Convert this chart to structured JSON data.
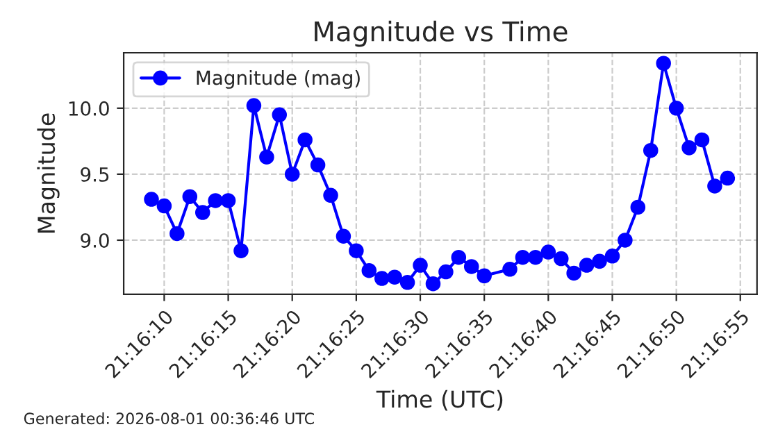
{
  "chart_data": {
    "type": "line",
    "title": "Magnitude vs Time",
    "xlabel": "Time (UTC)",
    "ylabel": "Magnitude",
    "annotations": [
      "Generated: 2026-08-01 00:36:46 UTC"
    ],
    "x": [
      21.269167,
      21.269444,
      21.269722,
      21.27,
      21.270278,
      21.270556,
      21.270833,
      21.271111,
      21.271389,
      21.271667,
      21.271944,
      21.272222,
      21.2725,
      21.272778,
      21.273056,
      21.273333,
      21.273611,
      21.273889,
      21.274167,
      21.274444,
      21.274722,
      21.275,
      21.275278,
      21.275556,
      21.275833,
      21.276111,
      21.276389,
      21.276944,
      21.277222,
      21.2775,
      21.277778,
      21.278056,
      21.278333,
      21.278611,
      21.278889,
      21.279167,
      21.279444,
      21.279722,
      21.28,
      21.280278,
      21.280556,
      21.280833,
      21.281111,
      21.281389,
      21.281667
    ],
    "series": [
      {
        "name": "Magnitude (mag)",
        "color": "#0000ff",
        "values": [
          9.31,
          9.26,
          9.05,
          9.33,
          9.21,
          9.3,
          9.3,
          8.92,
          10.02,
          9.63,
          9.95,
          9.5,
          9.76,
          9.57,
          9.34,
          9.03,
          8.92,
          8.77,
          8.71,
          8.72,
          8.68,
          8.81,
          8.67,
          8.76,
          8.87,
          8.8,
          8.73,
          8.78,
          8.87,
          8.87,
          8.91,
          8.86,
          8.75,
          8.81,
          8.84,
          8.88,
          9.0,
          9.25,
          9.68,
          10.34,
          10.0,
          9.7,
          9.76,
          9.41,
          9.47
        ]
      }
    ],
    "xlim": [
      21.268565,
      21.282306
    ],
    "xticks": [
      {
        "value": 21.269444,
        "label": "21:16:10"
      },
      {
        "value": 21.270833,
        "label": "21:16:15"
      },
      {
        "value": 21.272222,
        "label": "21:16:20"
      },
      {
        "value": 21.273611,
        "label": "21:16:25"
      },
      {
        "value": 21.275,
        "label": "21:16:30"
      },
      {
        "value": 21.276389,
        "label": "21:16:35"
      },
      {
        "value": 21.277778,
        "label": "21:16:40"
      },
      {
        "value": 21.279167,
        "label": "21:16:45"
      },
      {
        "value": 21.280556,
        "label": "21:16:50"
      },
      {
        "value": 21.281944,
        "label": "21:16:55"
      }
    ],
    "ylim": [
      8.59,
      10.42
    ],
    "yticks": [
      {
        "value": 9.0,
        "label": "9.0"
      },
      {
        "value": 9.5,
        "label": "9.5"
      },
      {
        "value": 10.0,
        "label": "10.0"
      }
    ],
    "grid": true,
    "legend": "top left",
    "marker": "circle",
    "line_style": "solid"
  }
}
